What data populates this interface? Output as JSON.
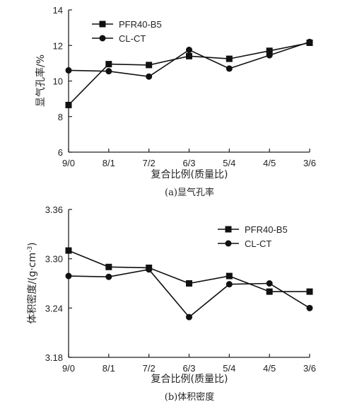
{
  "chart_data": [
    {
      "type": "line",
      "title": "",
      "caption": "(a)显气孔率",
      "xlabel": "复合比例(质量比)",
      "ylabel": "显气孔率/%",
      "categories": [
        "9/0",
        "8/1",
        "7/2",
        "6/3",
        "5/4",
        "4/5",
        "3/6"
      ],
      "ylim": [
        6,
        14
      ],
      "yticks": [
        6,
        8,
        10,
        12,
        14
      ],
      "legend_position": "top-left",
      "series": [
        {
          "name": "PFR40-B5",
          "marker": "square",
          "values": [
            8.65,
            10.95,
            10.9,
            11.4,
            11.25,
            11.7,
            12.15
          ]
        },
        {
          "name": "CL-CT",
          "marker": "circle",
          "values": [
            10.6,
            10.55,
            10.25,
            11.75,
            10.7,
            11.45,
            12.2
          ]
        }
      ]
    },
    {
      "type": "line",
      "title": "",
      "caption": "(b)体积密度",
      "xlabel": "复合比例(质量比)",
      "ylabel": "体积密度/(g·cm",
      "ylabel_sup": "-3",
      "ylabel_end": ")",
      "categories": [
        "9/0",
        "8/1",
        "7/2",
        "6/3",
        "5/4",
        "4/5",
        "3/6"
      ],
      "ylim": [
        3.18,
        3.36
      ],
      "yticks": [
        "3.18",
        "3.24",
        "3.30",
        "3.36"
      ],
      "legend_position": "top-right",
      "series": [
        {
          "name": "PFR40-B5",
          "marker": "square",
          "values": [
            3.31,
            3.29,
            3.289,
            3.27,
            3.279,
            3.26,
            3.26
          ]
        },
        {
          "name": "CL-CT",
          "marker": "circle",
          "values": [
            3.279,
            3.278,
            3.287,
            3.229,
            3.269,
            3.27,
            3.24
          ]
        }
      ]
    }
  ]
}
